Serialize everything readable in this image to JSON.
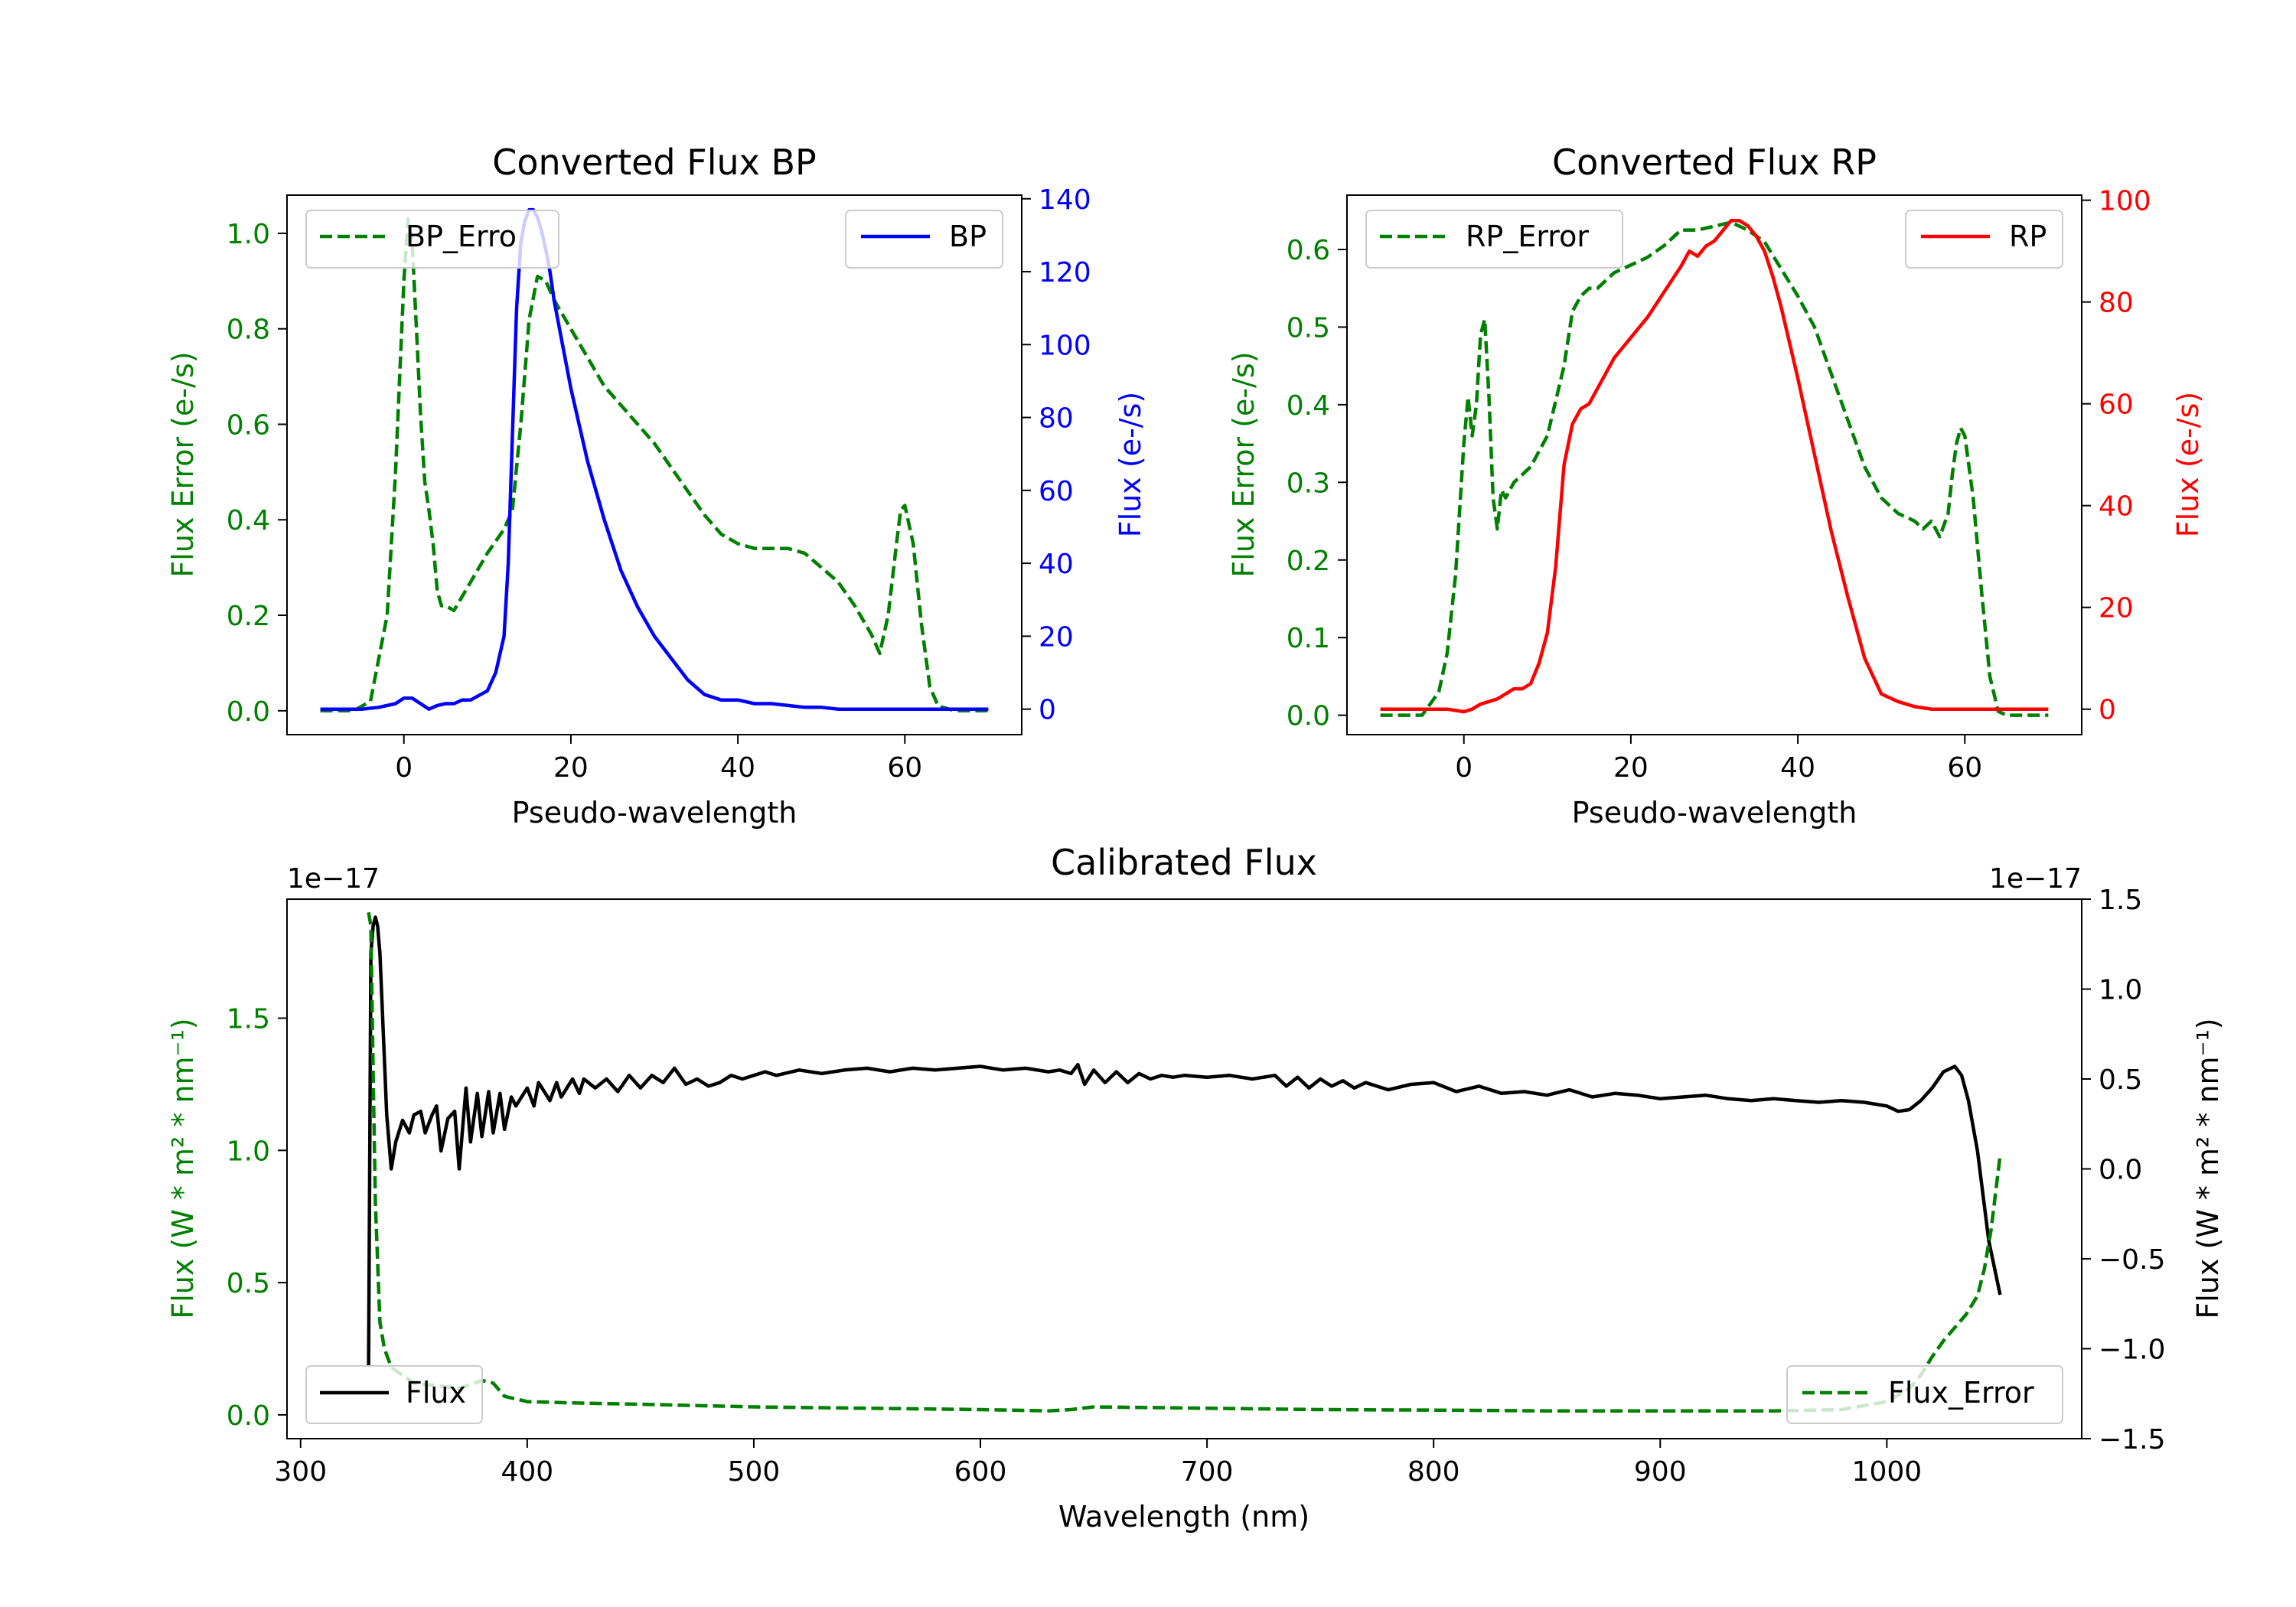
{
  "chart_data": [
    {
      "id": "bp",
      "type": "line",
      "title": "Converted Flux BP",
      "xlabel": "Pseudo-wavelength",
      "xlim": [
        -14,
        74
      ],
      "xticks": [
        0,
        20,
        40,
        60
      ],
      "x_tick_labels": [
        "0",
        "20",
        "40",
        "60"
      ],
      "left_axis": {
        "label": "Flux Error (e-/s)",
        "color": "#008000",
        "ylim": [
          -0.05,
          1.08
        ],
        "ticks": [
          0.0,
          0.2,
          0.4,
          0.6,
          0.8,
          1.0
        ],
        "tick_labels": [
          "0.0",
          "0.2",
          "0.4",
          "0.6",
          "0.8",
          "1.0"
        ]
      },
      "right_axis": {
        "label": "Flux (e-/s)",
        "color": "#0000ff",
        "ylim": [
          -7,
          141
        ],
        "ticks": [
          0,
          20,
          40,
          60,
          80,
          100,
          120,
          140
        ],
        "tick_labels": [
          "0",
          "20",
          "40",
          "60",
          "80",
          "100",
          "120",
          "140"
        ]
      },
      "series": [
        {
          "name": "BP_Error",
          "legend_text": "BP_Erro",
          "axis": "left",
          "color": "#008000",
          "dash": "dashed",
          "legend": "upper-left",
          "x": [
            -10,
            -6,
            -4,
            -2,
            -1,
            0,
            0.5,
            1,
            1.5,
            2,
            2.5,
            3,
            3.5,
            4,
            4.5,
            5,
            6,
            7,
            8,
            10,
            12,
            13,
            14,
            15,
            16,
            17,
            18,
            20,
            22,
            24,
            26,
            28,
            30,
            32,
            34,
            36,
            38,
            40,
            42,
            44,
            46,
            48,
            50,
            52,
            54,
            56,
            57,
            58,
            59,
            59.5,
            60,
            61,
            62,
            63,
            64,
            66,
            70
          ],
          "y": [
            0.0,
            0.0,
            0.02,
            0.2,
            0.5,
            0.9,
            1.03,
            0.98,
            0.8,
            0.62,
            0.48,
            0.42,
            0.35,
            0.25,
            0.22,
            0.22,
            0.21,
            0.24,
            0.27,
            0.33,
            0.38,
            0.42,
            0.6,
            0.82,
            0.91,
            0.9,
            0.86,
            0.8,
            0.74,
            0.68,
            0.64,
            0.6,
            0.56,
            0.51,
            0.46,
            0.41,
            0.37,
            0.35,
            0.34,
            0.34,
            0.34,
            0.33,
            0.3,
            0.27,
            0.22,
            0.16,
            0.12,
            0.2,
            0.35,
            0.42,
            0.43,
            0.35,
            0.18,
            0.05,
            0.01,
            0.0,
            0.0
          ]
        },
        {
          "name": "BP",
          "axis": "right",
          "color": "#0000ff",
          "dash": "solid",
          "legend": "upper-right",
          "x": [
            -10,
            -5,
            -3,
            -1,
            0,
            1,
            2,
            3,
            4,
            5,
            6,
            7,
            8,
            10,
            11,
            12,
            12.5,
            13,
            13.5,
            14,
            14.5,
            15,
            15.5,
            16,
            16.5,
            17,
            17.5,
            18,
            19,
            20,
            22,
            24,
            26,
            28,
            30,
            32,
            34,
            36,
            38,
            40,
            42,
            44,
            46,
            48,
            50,
            52,
            55,
            58,
            62,
            66,
            70
          ],
          "y": [
            0,
            0,
            0.5,
            1.5,
            3,
            3,
            1.5,
            0,
            1,
            1.5,
            1.5,
            2.5,
            2.5,
            5,
            10,
            20,
            40,
            75,
            110,
            128,
            134,
            137,
            137,
            135,
            131,
            126,
            120,
            112,
            100,
            88,
            68,
            52,
            38,
            28,
            20,
            14,
            8,
            4,
            2.5,
            2.5,
            1.5,
            1.5,
            1.0,
            0.5,
            0.5,
            0,
            0,
            0,
            0,
            0,
            0
          ]
        }
      ]
    },
    {
      "id": "rp",
      "type": "line",
      "title": "Converted Flux RP",
      "xlabel": "Pseudo-wavelength",
      "xlim": [
        -14,
        74
      ],
      "xticks": [
        0,
        20,
        40,
        60
      ],
      "x_tick_labels": [
        "0",
        "20",
        "40",
        "60"
      ],
      "left_axis": {
        "label": "Flux Error (e-/s)",
        "color": "#008000",
        "ylim": [
          -0.025,
          0.67
        ],
        "ticks": [
          0.0,
          0.1,
          0.2,
          0.3,
          0.4,
          0.5,
          0.6
        ],
        "tick_labels": [
          "0.0",
          "0.1",
          "0.2",
          "0.3",
          "0.4",
          "0.5",
          "0.6"
        ]
      },
      "right_axis": {
        "label": "Flux (e-/s)",
        "color": "#ff0000",
        "ylim": [
          -5,
          101
        ],
        "ticks": [
          0,
          20,
          40,
          60,
          80,
          100
        ],
        "tick_labels": [
          "0",
          "20",
          "40",
          "60",
          "80",
          "100"
        ]
      },
      "series": [
        {
          "name": "RP_Error",
          "legend_text": "RP_Error",
          "axis": "left",
          "color": "#008000",
          "dash": "dashed",
          "legend": "upper-left",
          "x": [
            -10,
            -5,
            -3,
            -2,
            -1,
            0,
            0.5,
            1,
            1.5,
            2,
            2.5,
            3,
            3.5,
            4,
            4.5,
            5,
            6,
            7,
            8,
            10,
            12,
            13,
            14,
            15,
            16,
            18,
            20,
            22,
            24,
            26,
            28,
            30,
            32,
            34,
            36,
            38,
            40,
            42,
            44,
            46,
            48,
            50,
            52,
            54,
            55,
            56,
            57,
            58,
            58.5,
            59,
            59.5,
            60,
            61,
            62,
            63,
            64,
            65,
            70
          ],
          "y": [
            0.0,
            0.0,
            0.03,
            0.08,
            0.18,
            0.35,
            0.41,
            0.36,
            0.4,
            0.49,
            0.51,
            0.41,
            0.28,
            0.24,
            0.29,
            0.28,
            0.3,
            0.31,
            0.32,
            0.36,
            0.45,
            0.52,
            0.54,
            0.55,
            0.55,
            0.57,
            0.58,
            0.59,
            0.605,
            0.625,
            0.625,
            0.63,
            0.635,
            0.625,
            0.61,
            0.575,
            0.54,
            0.5,
            0.44,
            0.38,
            0.32,
            0.28,
            0.26,
            0.25,
            0.24,
            0.25,
            0.23,
            0.26,
            0.31,
            0.35,
            0.37,
            0.36,
            0.28,
            0.16,
            0.05,
            0.005,
            0.0,
            0.0
          ]
        },
        {
          "name": "RP",
          "axis": "right",
          "color": "#ff0000",
          "dash": "solid",
          "legend": "upper-right",
          "x": [
            -10,
            -5,
            -2,
            0,
            1,
            2,
            3,
            4,
            5,
            6,
            7,
            8,
            9,
            10,
            11,
            12,
            13,
            14,
            15,
            16,
            17,
            18,
            20,
            22,
            24,
            26,
            27,
            28,
            29,
            30,
            31,
            32,
            33,
            34,
            35,
            36,
            37,
            38,
            40,
            42,
            44,
            46,
            48,
            50,
            52,
            54,
            56,
            60,
            65,
            70
          ],
          "y": [
            0,
            0,
            0,
            -0.5,
            0,
            1,
            1.5,
            2,
            3,
            4,
            4,
            5,
            9,
            15,
            28,
            48,
            56,
            59,
            60,
            63,
            66,
            69,
            73,
            77,
            82,
            87,
            90,
            89,
            91,
            92,
            94,
            96,
            96,
            95,
            93,
            90,
            85,
            79,
            65,
            50,
            35,
            22,
            10,
            3,
            1.5,
            0.5,
            0,
            0,
            0,
            0
          ]
        }
      ]
    },
    {
      "id": "calibrated",
      "type": "line",
      "title": "Calibrated Flux",
      "xlabel": "Wavelength (nm)",
      "xlim": [
        294,
        1086
      ],
      "xticks": [
        300,
        400,
        500,
        600,
        700,
        800,
        900,
        1000
      ],
      "x_tick_labels": [
        "300",
        "400",
        "500",
        "600",
        "700",
        "800",
        "900",
        "1000"
      ],
      "left_axis": {
        "label": "Flux (W * m² * nm⁻¹)",
        "color": "#008000",
        "offset_text": "1e−17",
        "ylim": [
          -0.09,
          1.95
        ],
        "ticks": [
          0.0,
          0.5,
          1.0,
          1.5
        ],
        "tick_labels": [
          "0.0",
          "0.5",
          "1.0",
          "1.5"
        ]
      },
      "right_axis": {
        "label": "Flux (W * m² * nm⁻¹)",
        "color": "#000000",
        "offset_text": "1e−17",
        "ylim": [
          -1.5,
          1.5
        ],
        "ticks": [
          -1.5,
          -1.0,
          -0.5,
          0.0,
          0.5,
          1.0,
          1.5
        ],
        "tick_labels": [
          "−1.5",
          "−1.0",
          "−0.5",
          "0.0",
          "0.5",
          "1.0",
          "1.5"
        ]
      },
      "series": [
        {
          "name": "Flux",
          "legend_text": "Flux",
          "axis": "right",
          "color": "#000000",
          "dash": "solid",
          "legend": "lower-left",
          "x": [
            330,
            331,
            332,
            333,
            334,
            335,
            336,
            338,
            340,
            342,
            345,
            348,
            350,
            353,
            355,
            358,
            360,
            362,
            365,
            368,
            370,
            373,
            375,
            378,
            380,
            383,
            385,
            388,
            390,
            393,
            395,
            400,
            403,
            405,
            410,
            413,
            415,
            420,
            423,
            425,
            430,
            435,
            440,
            445,
            450,
            455,
            460,
            465,
            470,
            475,
            480,
            485,
            490,
            495,
            500,
            505,
            510,
            520,
            530,
            540,
            550,
            560,
            570,
            580,
            590,
            600,
            610,
            620,
            630,
            635,
            640,
            643,
            646,
            650,
            655,
            660,
            665,
            670,
            675,
            680,
            685,
            690,
            700,
            710,
            720,
            730,
            735,
            740,
            745,
            750,
            755,
            760,
            765,
            770,
            780,
            790,
            800,
            810,
            820,
            830,
            840,
            850,
            860,
            870,
            880,
            890,
            900,
            910,
            920,
            930,
            940,
            950,
            960,
            970,
            980,
            990,
            1000,
            1005,
            1010,
            1015,
            1020,
            1025,
            1030,
            1033,
            1036,
            1040,
            1045,
            1050
          ],
          "y": [
            -1.1,
            1.2,
            1.35,
            1.4,
            1.35,
            1.2,
            0.9,
            0.3,
            0.0,
            0.15,
            0.27,
            0.2,
            0.3,
            0.32,
            0.2,
            0.3,
            0.35,
            0.1,
            0.28,
            0.32,
            0.0,
            0.45,
            0.15,
            0.42,
            0.18,
            0.43,
            0.2,
            0.42,
            0.22,
            0.4,
            0.35,
            0.45,
            0.35,
            0.48,
            0.38,
            0.48,
            0.4,
            0.5,
            0.42,
            0.5,
            0.45,
            0.5,
            0.43,
            0.52,
            0.45,
            0.52,
            0.48,
            0.56,
            0.47,
            0.5,
            0.46,
            0.48,
            0.52,
            0.5,
            0.52,
            0.54,
            0.52,
            0.55,
            0.53,
            0.55,
            0.56,
            0.54,
            0.56,
            0.55,
            0.56,
            0.57,
            0.55,
            0.56,
            0.54,
            0.55,
            0.53,
            0.58,
            0.47,
            0.55,
            0.48,
            0.54,
            0.48,
            0.53,
            0.5,
            0.52,
            0.51,
            0.52,
            0.51,
            0.52,
            0.5,
            0.52,
            0.46,
            0.51,
            0.45,
            0.5,
            0.46,
            0.49,
            0.45,
            0.48,
            0.44,
            0.47,
            0.48,
            0.43,
            0.46,
            0.42,
            0.43,
            0.41,
            0.44,
            0.4,
            0.42,
            0.41,
            0.39,
            0.4,
            0.41,
            0.39,
            0.38,
            0.39,
            0.38,
            0.37,
            0.38,
            0.37,
            0.35,
            0.32,
            0.33,
            0.38,
            0.45,
            0.54,
            0.57,
            0.52,
            0.38,
            0.1,
            -0.4,
            -0.7
          ]
        },
        {
          "name": "Flux_Error",
          "legend_text": "Flux_Error",
          "axis": "left",
          "color": "#008000",
          "dash": "dashed",
          "legend": "lower-right",
          "x": [
            330,
            331,
            332,
            333,
            335,
            337,
            340,
            345,
            350,
            360,
            370,
            380,
            385,
            390,
            400,
            420,
            450,
            500,
            550,
            600,
            630,
            640,
            650,
            700,
            750,
            800,
            850,
            900,
            950,
            980,
            1000,
            1010,
            1015,
            1020,
            1025,
            1030,
            1035,
            1040,
            1043,
            1046,
            1050
          ],
          "y": [
            1.9,
            1.85,
            1.3,
            0.8,
            0.35,
            0.25,
            0.18,
            0.15,
            0.12,
            0.11,
            0.1,
            0.13,
            0.12,
            0.07,
            0.05,
            0.045,
            0.04,
            0.03,
            0.025,
            0.02,
            0.015,
            0.02,
            0.03,
            0.025,
            0.02,
            0.018,
            0.015,
            0.015,
            0.015,
            0.02,
            0.05,
            0.1,
            0.15,
            0.22,
            0.28,
            0.33,
            0.38,
            0.45,
            0.55,
            0.7,
            0.98
          ]
        }
      ]
    }
  ]
}
